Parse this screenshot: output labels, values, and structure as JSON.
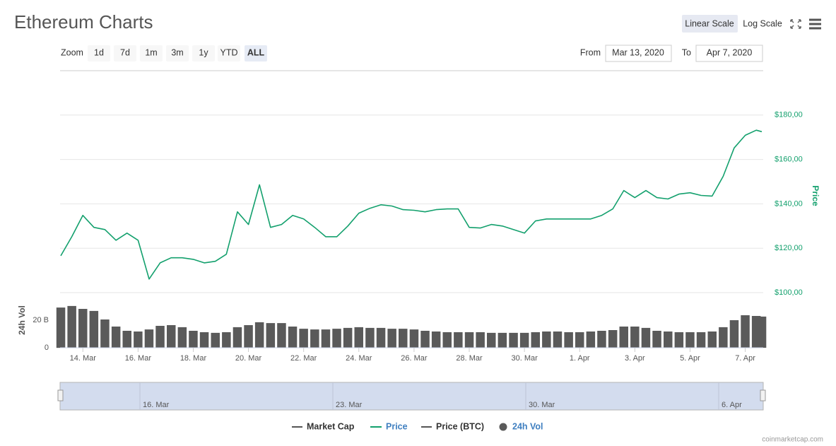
{
  "header": {
    "title": "Ethereum Charts",
    "scale_buttons": [
      "Linear Scale",
      "Log Scale"
    ]
  },
  "zoom": {
    "label": "Zoom",
    "buttons": [
      "1d",
      "7d",
      "1m",
      "3m",
      "1y",
      "YTD",
      "ALL"
    ],
    "selected": 6
  },
  "range": {
    "from_label": "From",
    "from": "Mar 13, 2020",
    "to_label": "To",
    "to": "Apr 7, 2020"
  },
  "chart_data": [
    {
      "type": "line",
      "y_label": "Price",
      "grid": true,
      "xlim": [
        13.2,
        38.6
      ],
      "ylim": [
        100,
        200
      ],
      "yticks": [
        {
          "value": 100,
          "label": "$100,00"
        },
        {
          "value": 120,
          "label": "$120,00"
        },
        {
          "value": 140,
          "label": "$140,00"
        },
        {
          "value": 160,
          "label": "$160,00"
        },
        {
          "value": 180,
          "label": "$180,00"
        }
      ],
      "x": [
        13.2,
        13.6,
        14.0,
        14.4,
        14.8,
        15.2,
        15.6,
        16.0,
        16.4,
        16.8,
        17.2,
        17.6,
        18.0,
        18.4,
        18.8,
        19.2,
        19.6,
        20.0,
        20.4,
        20.8,
        21.2,
        21.6,
        22.0,
        22.4,
        22.8,
        23.2,
        23.6,
        24.0,
        24.4,
        24.8,
        25.2,
        25.6,
        26.0,
        26.4,
        26.8,
        27.2,
        27.6,
        28.0,
        28.4,
        28.8,
        29.2,
        29.6,
        30.0,
        30.4,
        30.8,
        31.2,
        31.6,
        32.0,
        32.4,
        32.8,
        33.2,
        33.6,
        34.0,
        34.4,
        34.8,
        35.2,
        35.6,
        36.0,
        36.4,
        36.8,
        37.2,
        37.6,
        38.0,
        38.4,
        38.6
      ],
      "series": [
        {
          "name": "Price",
          "color": "#13a06d",
          "values": [
            116.6,
            125.2,
            134.8,
            129.4,
            128.4,
            123.6,
            126.8,
            123.6,
            106.1,
            113.4,
            115.7,
            115.7,
            115.0,
            113.4,
            114.1,
            117.3,
            136.4,
            130.7,
            148.6,
            129.4,
            130.7,
            134.8,
            133.2,
            129.4,
            125.2,
            125.2,
            130.0,
            135.8,
            138.0,
            139.6,
            139.0,
            137.4,
            137.1,
            136.4,
            137.4,
            137.7,
            137.7,
            129.4,
            129.1,
            130.7,
            130.0,
            128.4,
            126.8,
            132.3,
            133.2,
            133.2,
            133.2,
            133.2,
            133.2,
            134.8,
            137.7,
            146.0,
            142.8,
            146.0,
            142.8,
            142.2,
            144.4,
            145.0,
            143.8,
            143.5,
            152.4,
            165.2,
            170.9,
            173.2,
            172.5
          ]
        }
      ]
    },
    {
      "type": "bar",
      "y_label": "24h Vol",
      "xlim": [
        13.2,
        38.6
      ],
      "xticks": [
        {
          "value": 14,
          "label": "14. Mar"
        },
        {
          "value": 16,
          "label": "16. Mar"
        },
        {
          "value": 18,
          "label": "18. Mar"
        },
        {
          "value": 20,
          "label": "20. Mar"
        },
        {
          "value": 22,
          "label": "22. Mar"
        },
        {
          "value": 24,
          "label": "24. Mar"
        },
        {
          "value": 26,
          "label": "26. Mar"
        },
        {
          "value": 28,
          "label": "28. Mar"
        },
        {
          "value": 30,
          "label": "30. Mar"
        },
        {
          "value": 32,
          "label": "1. Apr"
        },
        {
          "value": 34,
          "label": "3. Apr"
        },
        {
          "value": 36,
          "label": "5. Apr"
        },
        {
          "value": 38,
          "label": "7. Apr"
        }
      ],
      "ylim": [
        0,
        40
      ],
      "yticks": [
        0,
        {
          "value": 20,
          "label": "20 B"
        }
      ],
      "x": [
        13.2,
        13.6,
        14.0,
        14.4,
        14.8,
        15.2,
        15.6,
        16.0,
        16.4,
        16.8,
        17.2,
        17.6,
        18.0,
        18.4,
        18.8,
        19.2,
        19.6,
        20.0,
        20.4,
        20.8,
        21.2,
        21.6,
        22.0,
        22.4,
        22.8,
        23.2,
        23.6,
        24.0,
        24.4,
        24.8,
        25.2,
        25.6,
        26.0,
        26.4,
        26.8,
        27.2,
        27.6,
        28.0,
        28.4,
        28.8,
        29.2,
        29.6,
        30.0,
        30.4,
        30.8,
        31.2,
        31.6,
        32.0,
        32.4,
        32.8,
        33.2,
        33.6,
        34.0,
        34.4,
        34.8,
        35.2,
        35.6,
        36.0,
        36.4,
        36.8,
        37.2,
        37.6,
        38.0,
        38.4,
        38.6
      ],
      "series": [
        {
          "name": "24h Vol",
          "color": "#5a5a5a",
          "values": [
            29.2,
            30.3,
            28.2,
            26.7,
            20.5,
            15.4,
            12.3,
            11.8,
            13.3,
            15.9,
            16.4,
            14.9,
            12.3,
            11.3,
            10.8,
            11.3,
            14.9,
            16.4,
            18.5,
            17.9,
            17.9,
            15.4,
            13.8,
            13.3,
            13.3,
            13.8,
            14.4,
            14.9,
            14.4,
            14.4,
            13.8,
            13.8,
            13.3,
            12.3,
            11.8,
            11.3,
            11.3,
            11.3,
            11.3,
            10.8,
            10.8,
            10.8,
            10.8,
            11.3,
            11.8,
            11.8,
            11.3,
            11.3,
            11.8,
            12.3,
            12.8,
            15.4,
            15.4,
            14.4,
            12.3,
            11.8,
            11.3,
            11.3,
            11.3,
            11.8,
            14.9,
            20.0,
            23.6,
            23.1,
            22.6
          ]
        }
      ]
    }
  ],
  "navigator": {
    "labels": [
      "16. Mar",
      "23. Mar",
      "30. Mar",
      "6. Apr"
    ]
  },
  "legend_extra": [
    "Market Cap",
    "Price (BTC)"
  ],
  "credit": "coinmarketcap.com"
}
